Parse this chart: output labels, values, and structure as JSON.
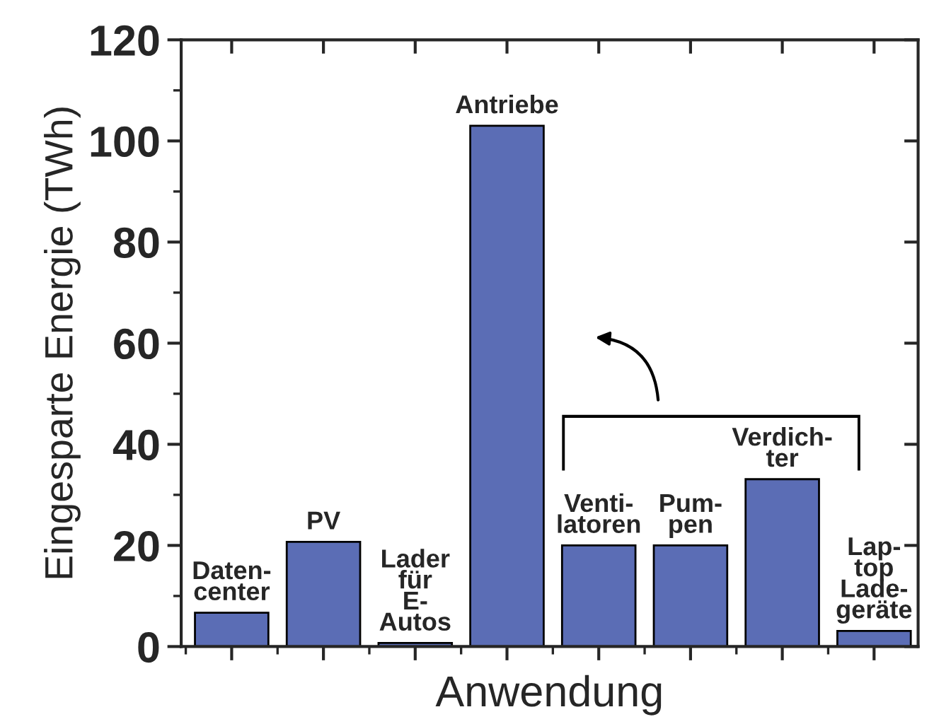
{
  "chart_data": {
    "type": "bar",
    "xlabel": "Anwendung",
    "ylabel": "Eingesparte Energie (TWh)",
    "categories": [
      "Daten-\ncenter",
      "PV",
      "Lader\nfür\nE-\nAutos",
      "Antriebe",
      "Venti-\nlatoren",
      "Pum-\npen",
      "Verdich-\nter",
      "Lap-\ntop\nLade-\ngeräte"
    ],
    "values": [
      6.7,
      20.7,
      0.7,
      103,
      20,
      20,
      33.1,
      3.1
    ],
    "color": "#5b6db5",
    "ylim": [
      0,
      120
    ],
    "yticks": [
      0,
      20,
      40,
      60,
      80,
      100,
      120
    ],
    "grid": false,
    "legend": false
  }
}
